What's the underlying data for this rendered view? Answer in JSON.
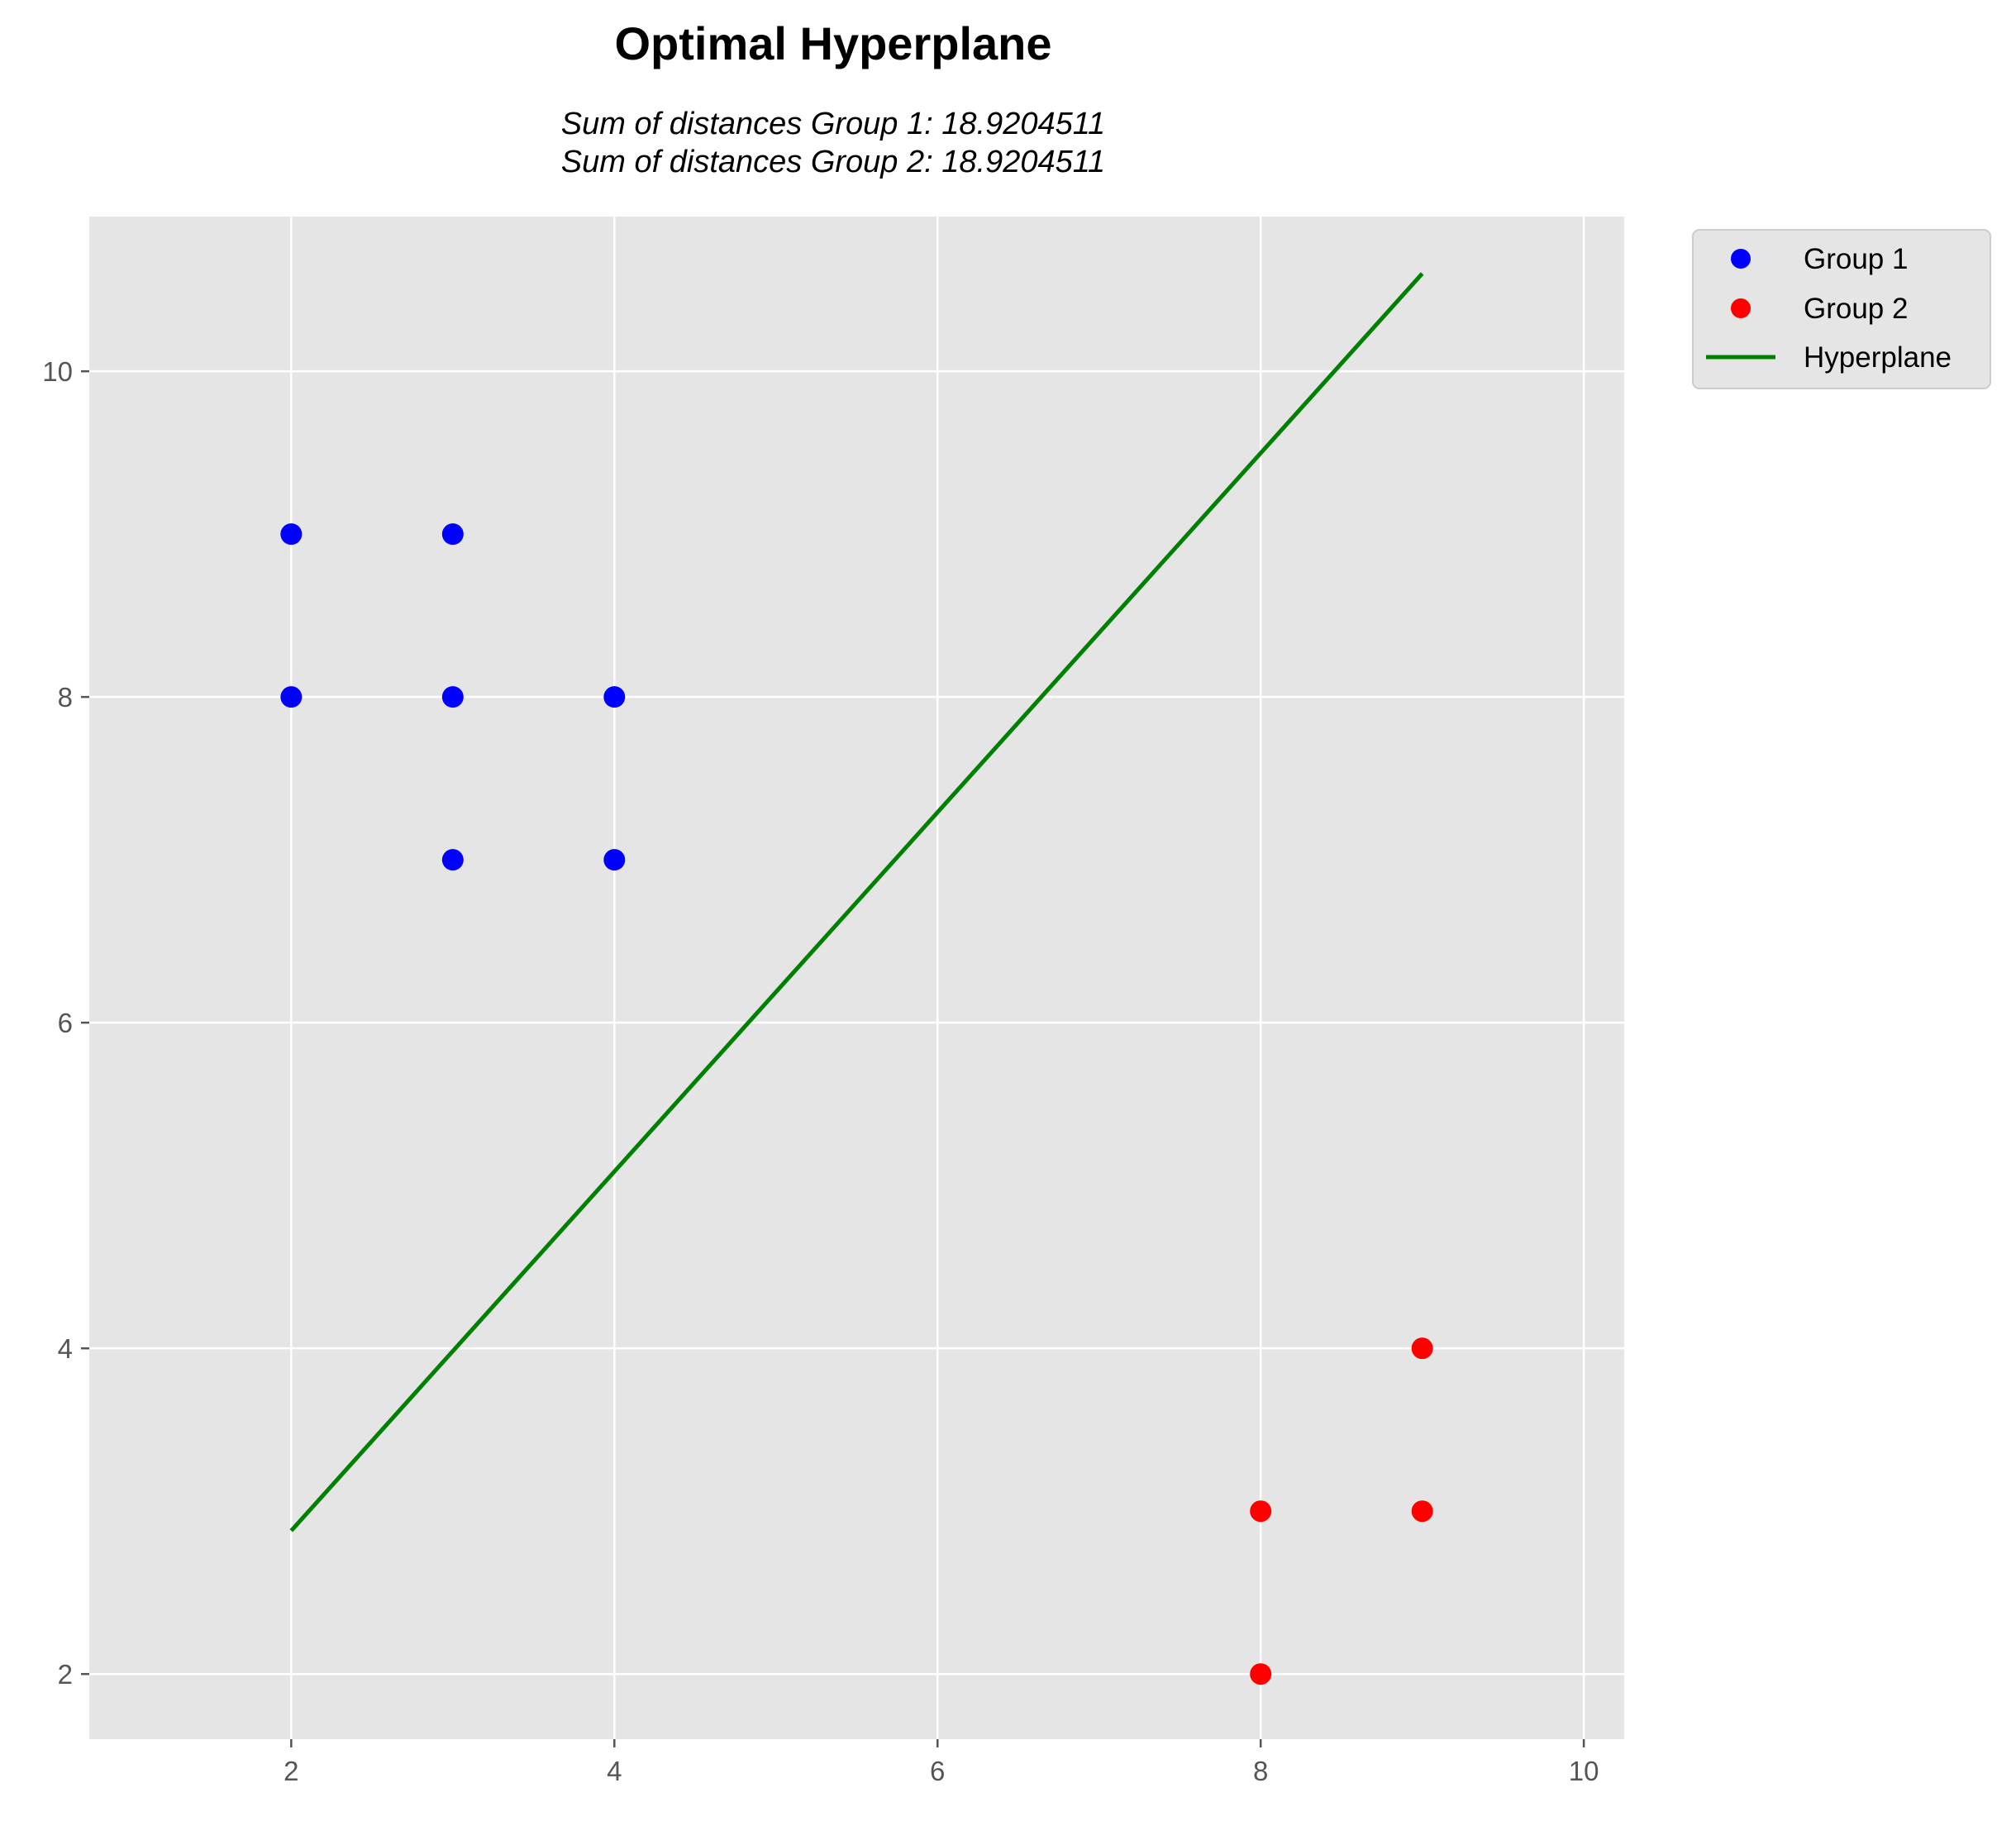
{
  "chart_data": {
    "type": "scatter",
    "title": "Optimal Hyperplane",
    "subtitle_lines": [
      "Sum of distances Group 1: 18.9204511",
      "Sum of distances Group 2: 18.9204511"
    ],
    "xlabel": "",
    "ylabel": "",
    "xlim": [
      0.75,
      10.25
    ],
    "ylim": [
      1.6,
      10.95
    ],
    "xticks": [
      2,
      4,
      6,
      8,
      10
    ],
    "yticks": [
      2,
      4,
      6,
      8,
      10
    ],
    "grid": true,
    "legend_position": "outside-top-right",
    "background_color": "#e5e5e5",
    "series": [
      {
        "name": "Group 1",
        "kind": "scatter",
        "color": "#0000ff",
        "points": [
          [
            2,
            9
          ],
          [
            2,
            8
          ],
          [
            3,
            9
          ],
          [
            3,
            8
          ],
          [
            3,
            7
          ],
          [
            4,
            8
          ],
          [
            4,
            7
          ]
        ]
      },
      {
        "name": "Group 2",
        "kind": "scatter",
        "color": "#ff0000",
        "points": [
          [
            8,
            3
          ],
          [
            8,
            2
          ],
          [
            9,
            4
          ],
          [
            9,
            3
          ]
        ]
      },
      {
        "name": "Hyperplane",
        "kind": "line",
        "color": "#008000",
        "points": [
          [
            2,
            2.88
          ],
          [
            9,
            10.6
          ]
        ]
      }
    ]
  }
}
